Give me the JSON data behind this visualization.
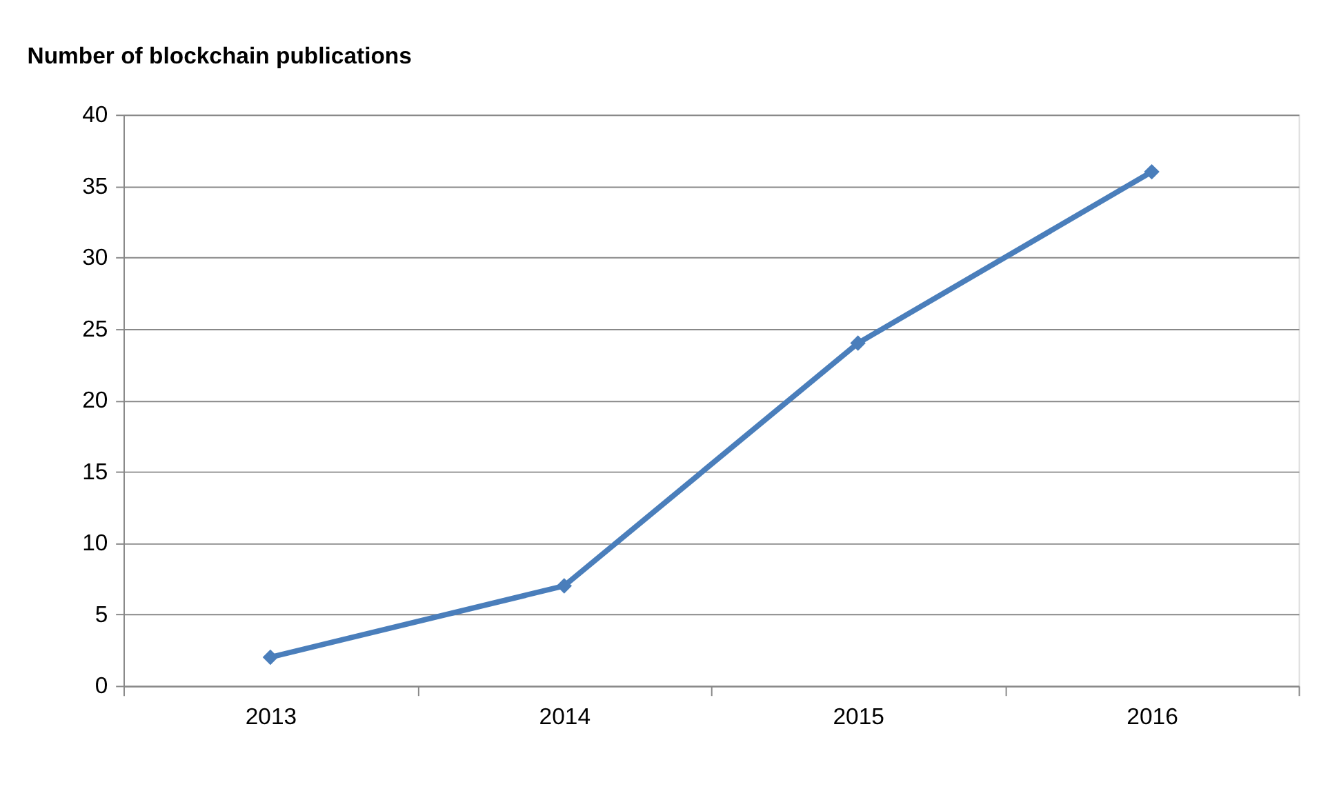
{
  "chart_data": {
    "type": "line",
    "title": "Number of blockchain publications",
    "categories": [
      "2013",
      "2014",
      "2015",
      "2016"
    ],
    "series": [
      {
        "color": "#4a7ebb",
        "values": [
          2,
          7,
          24,
          36
        ]
      }
    ],
    "ylim": [
      0,
      40
    ],
    "yticks": [
      0,
      5,
      10,
      15,
      20,
      25,
      30,
      35,
      40
    ],
    "grid": "y",
    "marker": "diamond",
    "line_style": "solid"
  }
}
